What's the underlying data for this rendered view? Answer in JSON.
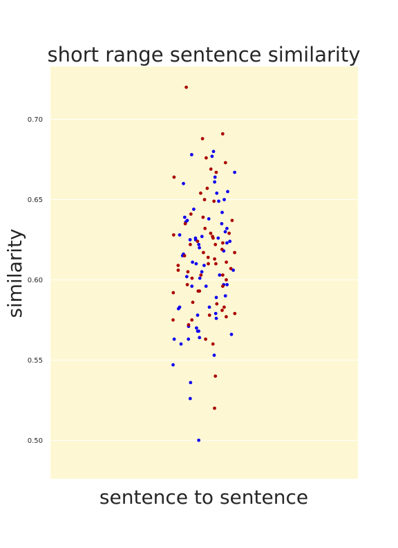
{
  "chart_data": {
    "type": "scatter",
    "title": "short range sentence similarity",
    "xlabel": "sentence to sentence",
    "ylabel": "similarity",
    "ylim": [
      0.476,
      0.733
    ],
    "yticks": [
      "0.50",
      "0.55",
      "0.60",
      "0.65",
      "0.70"
    ],
    "grid": true,
    "background_color": "#fdf8d3",
    "series": [
      {
        "color": "#1100ee",
        "values": [
          0.68,
          0.678,
          0.677,
          0.667,
          0.664,
          0.661,
          0.66,
          0.655,
          0.654,
          0.65,
          0.649,
          0.644,
          0.642,
          0.639,
          0.638,
          0.637,
          0.636,
          0.635,
          0.632,
          0.63,
          0.628,
          0.627,
          0.626,
          0.626,
          0.625,
          0.625,
          0.624,
          0.623,
          0.622,
          0.62,
          0.618,
          0.616,
          0.615,
          0.611,
          0.61,
          0.609,
          0.606,
          0.605,
          0.603,
          0.602,
          0.601,
          0.597,
          0.597,
          0.596,
          0.596,
          0.59,
          0.589,
          0.583,
          0.583,
          0.582,
          0.579,
          0.578,
          0.576,
          0.571,
          0.57,
          0.568,
          0.568,
          0.566,
          0.564,
          0.563,
          0.563,
          0.56,
          0.553,
          0.547,
          0.536,
          0.526,
          0.5
        ]
      },
      {
        "color": "#aa0000",
        "values": [
          0.72,
          0.691,
          0.688,
          0.676,
          0.673,
          0.669,
          0.667,
          0.664,
          0.657,
          0.654,
          0.65,
          0.649,
          0.641,
          0.639,
          0.637,
          0.635,
          0.632,
          0.629,
          0.629,
          0.628,
          0.627,
          0.626,
          0.624,
          0.623,
          0.622,
          0.622,
          0.619,
          0.617,
          0.617,
          0.615,
          0.614,
          0.613,
          0.611,
          0.61,
          0.61,
          0.609,
          0.607,
          0.606,
          0.605,
          0.603,
          0.603,
          0.601,
          0.6,
          0.597,
          0.596,
          0.593,
          0.593,
          0.592,
          0.586,
          0.585,
          0.583,
          0.581,
          0.579,
          0.578,
          0.577,
          0.575,
          0.575,
          0.572,
          0.563,
          0.56,
          0.54,
          0.52
        ]
      }
    ]
  }
}
